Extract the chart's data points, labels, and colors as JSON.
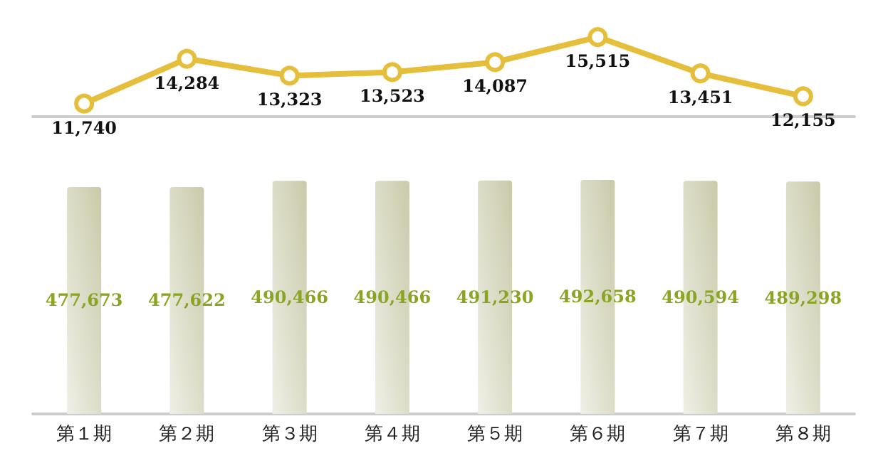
{
  "chart_data": [
    {
      "type": "line",
      "categories": [
        null,
        null,
        null,
        null,
        null,
        null,
        null,
        null
      ],
      "values": [
        11740,
        14284,
        13323,
        13523,
        14087,
        15515,
        13451,
        12155
      ],
      "value_labels": [
        "11,740",
        "14,284",
        "13,323",
        "13,523",
        "14,087",
        "15,515",
        "13,451",
        "12,155"
      ],
      "color": "#e5bf3c",
      "marker": "circle",
      "line_style": "solid",
      "tick_labels": false
    },
    {
      "type": "bar",
      "categories": [
        "第１期",
        "第２期",
        "第３期",
        "第４期",
        "第５期",
        "第６期",
        "第７期",
        "第８期"
      ],
      "values": [
        477673,
        477622,
        490466,
        490466,
        491230,
        492658,
        490594,
        489298
      ],
      "value_labels": [
        "477,673",
        "477,622",
        "490,466",
        "490,466",
        "491,230",
        "492,658",
        "490,594",
        "489,298"
      ],
      "color": "#c9caa9",
      "tick_labels": "x"
    }
  ]
}
